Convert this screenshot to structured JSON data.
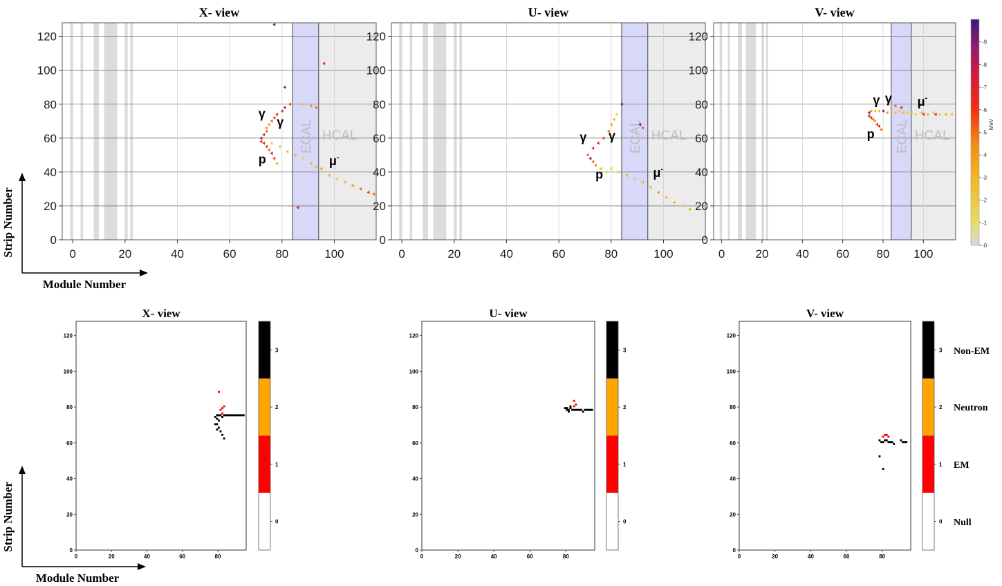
{
  "axis_titles": {
    "y": "Strip Number",
    "x": "Module Number"
  },
  "colors": {
    "ecal_band": "#d8d8f8",
    "hcal_band": "#ececec",
    "gap_band": "#dcdcdc",
    "grid": "#cccccc",
    "frame": "#555555",
    "cls_null": "#ffffff",
    "cls_em": "#ff0000",
    "cls_neutron": "#ffa500",
    "cls_nonem": "#000000"
  },
  "colorbar_energy": {
    "unit": "MeV",
    "ticks": [
      "0",
      "1",
      "2",
      "3",
      "4",
      "5",
      "6",
      "7",
      "8",
      "9"
    ],
    "min": 0,
    "max": 10
  },
  "colorbar_class": {
    "ticks": [
      "0",
      "1",
      "2",
      "3"
    ],
    "labels": [
      "Null",
      "EM",
      "Neutron",
      "Non-EM"
    ]
  },
  "region_labels": {
    "ecal": "ECAL",
    "hcal": "HCAL"
  },
  "chart_data": [
    {
      "type": "scatter",
      "title": "X- view",
      "xlabel": "Module Number",
      "ylabel": "Strip Number",
      "xlim": [
        -4,
        116
      ],
      "ylim": [
        0,
        128
      ],
      "xticks": [
        "0",
        "20",
        "40",
        "60",
        "80",
        "100"
      ],
      "yticks": [
        "0",
        "20",
        "40",
        "60",
        "80",
        "100",
        "120"
      ],
      "regions": {
        "ecal": [
          84,
          94
        ],
        "hcal": [
          94,
          116
        ]
      },
      "annotations": [
        {
          "text": "γ",
          "x": 71,
          "y": 72
        },
        {
          "text": "γ",
          "x": 78,
          "y": 67
        },
        {
          "text": "p",
          "x": 71,
          "y": 45
        },
        {
          "text": "μ",
          "sup": "-",
          "x": 98,
          "y": 44
        }
      ],
      "points": [
        [
          72,
          60,
          9
        ],
        [
          72,
          58,
          7
        ],
        [
          73,
          57,
          6
        ],
        [
          73,
          62,
          6
        ],
        [
          74,
          64,
          5
        ],
        [
          74,
          66,
          4
        ],
        [
          75,
          68,
          4
        ],
        [
          76,
          70,
          5
        ],
        [
          77,
          72,
          6
        ],
        [
          78,
          74,
          6
        ],
        [
          80,
          76,
          7
        ],
        [
          81,
          78,
          8
        ],
        [
          83,
          80,
          6
        ],
        [
          74,
          55,
          6
        ],
        [
          75,
          53,
          5
        ],
        [
          76,
          51,
          8
        ],
        [
          77,
          48,
          6
        ],
        [
          78,
          45,
          3
        ],
        [
          76,
          57,
          2
        ],
        [
          79,
          55,
          2
        ],
        [
          82,
          52,
          3
        ],
        [
          85,
          50,
          3
        ],
        [
          88,
          48,
          2
        ],
        [
          91,
          45,
          3
        ],
        [
          93,
          43,
          3
        ],
        [
          95,
          42,
          4
        ],
        [
          98,
          38,
          3
        ],
        [
          101,
          36,
          2
        ],
        [
          104,
          34,
          3
        ],
        [
          107,
          32,
          4
        ],
        [
          110,
          30,
          5
        ],
        [
          113,
          28,
          6
        ],
        [
          115,
          27,
          5
        ],
        [
          88,
          80,
          3
        ],
        [
          91,
          79,
          4
        ],
        [
          93,
          78,
          5
        ],
        [
          96,
          104,
          6
        ],
        [
          86,
          19,
          7
        ],
        [
          81,
          90,
          9
        ],
        [
          77,
          127,
          9
        ]
      ]
    },
    {
      "type": "scatter",
      "title": "U- view",
      "xlabel": "Module Number",
      "ylabel": "Strip Number",
      "xlim": [
        -4,
        116
      ],
      "ylim": [
        0,
        128
      ],
      "xticks": [
        "0",
        "20",
        "40",
        "60",
        "80",
        "100"
      ],
      "yticks": [
        "0",
        "20",
        "40",
        "60",
        "80",
        "100",
        "120"
      ],
      "regions": {
        "ecal": [
          84,
          94
        ],
        "hcal": [
          94,
          116
        ]
      },
      "annotations": [
        {
          "text": "γ",
          "x": 68,
          "y": 58
        },
        {
          "text": "γ",
          "x": 79,
          "y": 59
        },
        {
          "text": "p",
          "x": 74,
          "y": 36
        },
        {
          "text": "μ",
          "sup": "-",
          "x": 96,
          "y": 37
        }
      ],
      "points": [
        [
          72,
          48,
          9
        ],
        [
          73,
          46,
          5
        ],
        [
          74,
          44,
          4
        ],
        [
          76,
          42,
          3
        ],
        [
          78,
          40,
          2
        ],
        [
          71,
          50,
          5
        ],
        [
          73,
          54,
          6
        ],
        [
          75,
          57,
          7
        ],
        [
          77,
          60,
          6
        ],
        [
          79,
          64,
          5
        ],
        [
          80,
          68,
          4
        ],
        [
          81,
          71,
          3
        ],
        [
          82,
          74,
          2
        ],
        [
          80,
          42,
          2
        ],
        [
          83,
          40,
          2
        ],
        [
          86,
          38,
          3
        ],
        [
          89,
          36,
          2
        ],
        [
          92,
          34,
          3
        ],
        [
          95,
          31,
          3
        ],
        [
          98,
          28,
          4
        ],
        [
          101,
          25,
          3
        ],
        [
          104,
          22,
          3
        ],
        [
          107,
          20,
          2
        ],
        [
          110,
          18,
          3
        ],
        [
          84,
          80,
          9
        ],
        [
          91,
          68,
          9
        ],
        [
          92,
          66,
          5
        ],
        [
          82,
          40,
          1
        ]
      ]
    },
    {
      "type": "scatter",
      "title": "V- view",
      "xlabel": "Module Number",
      "ylabel": "Strip Number",
      "xlim": [
        -4,
        116
      ],
      "ylim": [
        0,
        128
      ],
      "xticks": [
        "0",
        "20",
        "40",
        "60",
        "80",
        "100"
      ],
      "yticks": [
        "0",
        "20",
        "40",
        "60",
        "80",
        "100",
        "120"
      ],
      "regions": {
        "ecal": [
          84,
          94
        ],
        "hcal": [
          94,
          116
        ]
      },
      "annotations": [
        {
          "text": "γ",
          "x": 75,
          "y": 80
        },
        {
          "text": "γ",
          "x": 81,
          "y": 81
        },
        {
          "text": "p",
          "x": 72,
          "y": 60
        },
        {
          "text": "μ",
          "sup": "-",
          "x": 97,
          "y": 79
        }
      ],
      "points": [
        [
          73,
          75,
          9
        ],
        [
          73,
          73,
          7
        ],
        [
          74,
          72,
          6
        ],
        [
          75,
          71,
          5
        ],
        [
          76,
          70,
          4
        ],
        [
          77,
          68,
          6
        ],
        [
          78,
          67,
          7
        ],
        [
          79,
          65,
          5
        ],
        [
          74,
          76,
          4
        ],
        [
          76,
          76,
          3
        ],
        [
          78,
          76,
          3
        ],
        [
          80,
          76,
          9
        ],
        [
          82,
          75,
          4
        ],
        [
          84,
          76,
          3
        ],
        [
          86,
          75,
          3
        ],
        [
          88,
          76,
          2
        ],
        [
          90,
          75,
          3
        ],
        [
          92,
          75,
          2
        ],
        [
          94,
          75,
          3
        ],
        [
          96,
          74,
          2
        ],
        [
          99,
          75,
          3
        ],
        [
          102,
          74,
          3
        ],
        [
          105,
          75,
          2
        ],
        [
          108,
          74,
          2
        ],
        [
          111,
          74,
          3
        ],
        [
          114,
          74,
          2
        ],
        [
          86,
          79,
          5
        ],
        [
          89,
          78,
          6
        ],
        [
          106,
          74,
          7
        ],
        [
          100,
          74,
          6
        ]
      ]
    },
    {
      "type": "heatmap",
      "title": "X- view",
      "xlim": [
        0,
        96
      ],
      "ylim": [
        0,
        128
      ],
      "xticks": [
        "0",
        "20",
        "40",
        "60",
        "80"
      ],
      "yticks": [
        "0",
        "20",
        "40",
        "60",
        "80",
        "100",
        "120"
      ],
      "cells": [
        [
          80,
          88,
          1
        ],
        [
          81,
          78,
          1
        ],
        [
          82,
          79,
          1
        ],
        [
          83,
          80,
          1
        ],
        [
          82,
          76,
          1
        ],
        [
          78,
          74,
          3
        ],
        [
          79,
          75,
          3
        ],
        [
          80,
          75,
          3
        ],
        [
          81,
          75,
          3
        ],
        [
          82,
          74,
          3
        ],
        [
          83,
          75,
          3
        ],
        [
          84,
          75,
          3
        ],
        [
          85,
          75,
          3
        ],
        [
          86,
          75,
          3
        ],
        [
          87,
          75,
          3
        ],
        [
          88,
          75,
          3
        ],
        [
          89,
          75,
          3
        ],
        [
          90,
          75,
          3
        ],
        [
          91,
          75,
          3
        ],
        [
          92,
          75,
          3
        ],
        [
          93,
          75,
          3
        ],
        [
          94,
          75,
          3
        ],
        [
          79,
          73,
          3
        ],
        [
          80,
          72,
          3
        ],
        [
          79,
          70,
          3
        ],
        [
          80,
          68,
          3
        ],
        [
          81,
          66,
          3
        ],
        [
          82,
          64,
          3
        ],
        [
          83,
          62,
          3
        ],
        [
          79,
          67,
          3
        ],
        [
          78,
          70,
          3
        ]
      ]
    },
    {
      "type": "heatmap",
      "title": "U- view",
      "xlim": [
        0,
        96
      ],
      "ylim": [
        0,
        128
      ],
      "xticks": [
        "0",
        "20",
        "40",
        "60",
        "80"
      ],
      "yticks": [
        "0",
        "20",
        "40",
        "60",
        "80",
        "100",
        "120"
      ],
      "cells": [
        [
          84,
          83,
          1
        ],
        [
          85,
          81,
          1
        ],
        [
          84,
          80,
          1
        ],
        [
          79,
          79,
          3
        ],
        [
          80,
          79,
          3
        ],
        [
          81,
          78,
          3
        ],
        [
          82,
          80,
          3
        ],
        [
          82,
          79,
          3
        ],
        [
          83,
          78,
          3
        ],
        [
          84,
          78,
          3
        ],
        [
          85,
          78,
          3
        ],
        [
          86,
          78,
          3
        ],
        [
          87,
          78,
          3
        ],
        [
          88,
          78,
          3
        ],
        [
          89,
          77,
          3
        ],
        [
          90,
          78,
          3
        ],
        [
          91,
          78,
          3
        ],
        [
          92,
          78,
          3
        ],
        [
          93,
          78,
          3
        ],
        [
          94,
          78,
          3
        ],
        [
          80,
          78,
          3
        ],
        [
          81,
          77,
          3
        ]
      ]
    },
    {
      "type": "heatmap",
      "title": "V- view",
      "xlim": [
        0,
        96
      ],
      "ylim": [
        0,
        128
      ],
      "xticks": [
        "0",
        "20",
        "40",
        "60",
        "80"
      ],
      "yticks": [
        "0",
        "20",
        "40",
        "60",
        "80",
        "100",
        "120"
      ],
      "cells": [
        [
          80,
          63,
          1
        ],
        [
          81,
          64,
          1
        ],
        [
          82,
          64,
          1
        ],
        [
          83,
          63,
          1
        ],
        [
          78,
          61,
          3
        ],
        [
          79,
          60,
          3
        ],
        [
          80,
          60,
          3
        ],
        [
          81,
          61,
          3
        ],
        [
          82,
          61,
          3
        ],
        [
          83,
          60,
          3
        ],
        [
          84,
          60,
          3
        ],
        [
          85,
          60,
          3
        ],
        [
          86,
          59,
          3
        ],
        [
          90,
          61,
          3
        ],
        [
          91,
          60,
          3
        ],
        [
          92,
          60,
          3
        ],
        [
          93,
          60,
          3
        ],
        [
          78,
          52,
          3
        ],
        [
          80,
          45,
          3
        ]
      ]
    }
  ]
}
